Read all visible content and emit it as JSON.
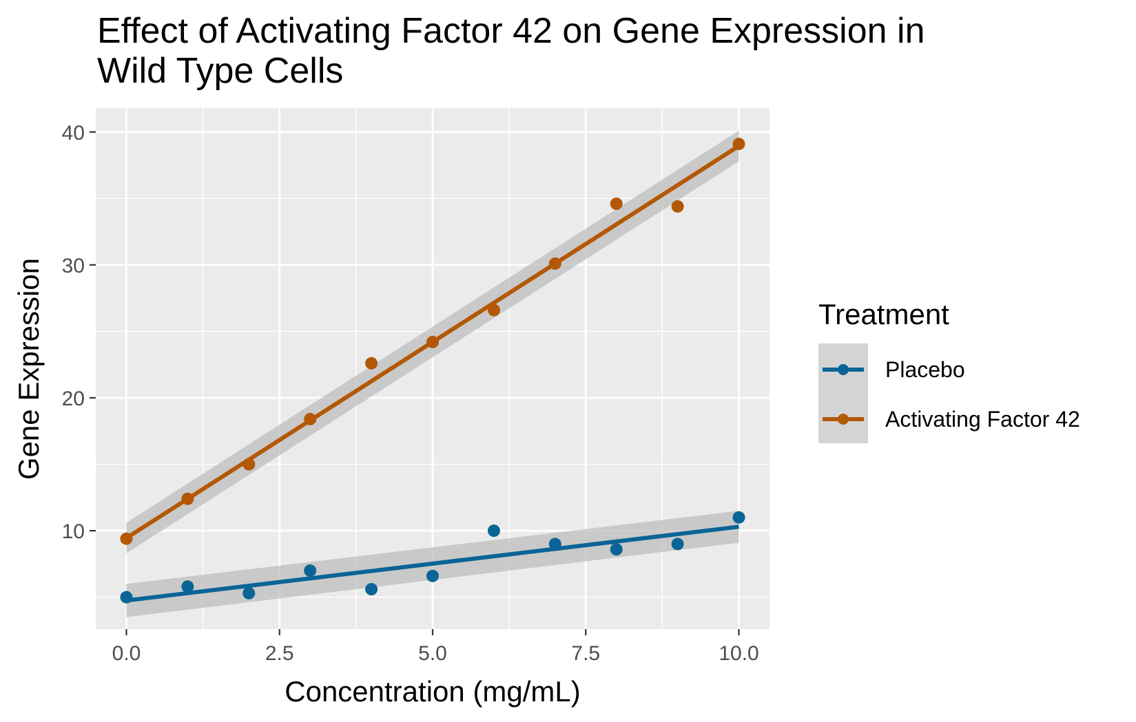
{
  "chart_data": {
    "type": "scatter",
    "title_lines": [
      "Effect of Activating Factor 42 on Gene Expression in",
      "Wild Type Cells"
    ],
    "xlabel": "Concentration (mg/mL)",
    "ylabel": "Gene Expression",
    "xlim": [
      -0.5,
      10.5
    ],
    "ylim": [
      2.6,
      41.8
    ],
    "x_ticks": [
      0,
      2.5,
      5,
      7.5,
      10
    ],
    "x_tick_labels": [
      "0.0",
      "2.5",
      "5.0",
      "7.5",
      "10.0"
    ],
    "y_ticks": [
      10,
      20,
      30,
      40
    ],
    "y_tick_labels": [
      "10",
      "20",
      "30",
      "40"
    ],
    "grid": true,
    "legend": {
      "title": "Treatment",
      "position": "right",
      "entries": [
        "Placebo",
        "Activating Factor 42"
      ]
    },
    "series": [
      {
        "name": "Placebo",
        "color": "#0a6496",
        "x": [
          0,
          1,
          2,
          3,
          4,
          5,
          6,
          7,
          8,
          9,
          10
        ],
        "y": [
          5.0,
          5.8,
          5.3,
          7.0,
          5.6,
          6.6,
          10.0,
          9.0,
          8.6,
          9.0,
          11.0
        ],
        "fit": {
          "x": [
            0,
            10
          ],
          "y": [
            4.75,
            10.3
          ],
          "ci_lower": [
            3.5,
            9.1
          ],
          "ci_upper": [
            6.0,
            11.5
          ]
        }
      },
      {
        "name": "Activating Factor 42",
        "color": "#b35806",
        "x": [
          0,
          1,
          2,
          3,
          4,
          5,
          6,
          7,
          8,
          9,
          10
        ],
        "y": [
          9.4,
          12.4,
          15.0,
          18.4,
          22.6,
          24.2,
          26.6,
          30.1,
          34.6,
          34.4,
          39.1
        ],
        "fit": {
          "x": [
            0,
            10
          ],
          "y": [
            9.45,
            38.95
          ],
          "ci_lower": [
            8.3,
            37.8
          ],
          "ci_upper": [
            10.6,
            40.1
          ]
        }
      }
    ],
    "colors": {
      "panel_background": "#ebebeb",
      "grid": "#ffffff",
      "ribbon": "#bebebe",
      "legend_key_background": "#d4d4d4"
    }
  }
}
